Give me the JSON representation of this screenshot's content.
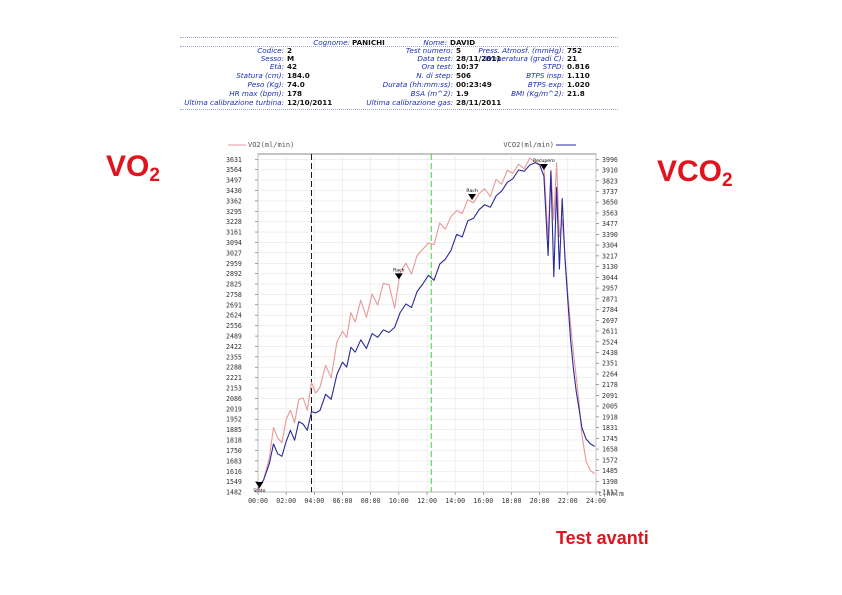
{
  "header": {
    "fields": [
      {
        "label": "Cognome:",
        "value": "PANICHI"
      },
      {
        "label": "Nome:",
        "value": "DAVID"
      },
      {
        "label": "Codice:",
        "value": "2"
      },
      {
        "label": "Sesso:",
        "value": "M"
      },
      {
        "label": "Età:",
        "value": "42"
      },
      {
        "label": "Statura (cm):",
        "value": "184.0"
      },
      {
        "label": "Peso (Kg):",
        "value": "74.0"
      },
      {
        "label": "HR max (bpm):",
        "value": "178"
      },
      {
        "label": "Ultima calibrazione turbina:",
        "value": "12/10/2011"
      },
      {
        "label": "Test numero:",
        "value": "5"
      },
      {
        "label": "Data test:",
        "value": "28/11/2011"
      },
      {
        "label": "Ora test:",
        "value": "10:37"
      },
      {
        "label": "N. di step:",
        "value": "506"
      },
      {
        "label": "Durata (hh:mm:ss):",
        "value": "00:23:49"
      },
      {
        "label": "BSA (m^2):",
        "value": "1.9"
      },
      {
        "label": "Ultima calibrazione gas:",
        "value": "28/11/2011"
      },
      {
        "label": "Press. Atmosf. (mmHg):",
        "value": "752"
      },
      {
        "label": "Temperatura (gradi C):",
        "value": "21"
      },
      {
        "label": "STPD:",
        "value": "0.816"
      },
      {
        "label": "BTPS insp:",
        "value": "1.110"
      },
      {
        "label": "BTPS exp:",
        "value": "1.020"
      },
      {
        "label": "BMI (Kg/m^2):",
        "value": "21.8"
      }
    ]
  },
  "left_title": {
    "main": "VO",
    "sub": "2"
  },
  "right_title": {
    "main": "VCO",
    "sub": "2"
  },
  "footer_label": "Test avanti",
  "colors": {
    "vo2": "#e89898",
    "vco2": "#2a2a9a",
    "accent_red": "#e0141e",
    "label_blue": "#1a2fb0",
    "green_marker": "#33cc33"
  },
  "chart_data": {
    "type": "line",
    "xlabel": "t(hh:mm:ss)",
    "x_ticks": [
      "00:00",
      "02:00",
      "04:00",
      "06:00",
      "08:00",
      "10:00",
      "12:00",
      "14:00",
      "16:00",
      "18:00",
      "20:00",
      "22:00",
      "24:00"
    ],
    "xlim": [
      0,
      24
    ],
    "y_left": {
      "label": "VO2(ml/min)",
      "ticks": [
        1482,
        1549,
        1616,
        1683,
        1750,
        1818,
        1885,
        1952,
        2019,
        2086,
        2153,
        2221,
        2288,
        2355,
        2422,
        2489,
        2556,
        2624,
        2691,
        2758,
        2825,
        2892,
        2959,
        3027,
        3094,
        3161,
        3228,
        3295,
        3362,
        3430,
        3497,
        3564,
        3631
      ],
      "lim": [
        1482,
        3665
      ]
    },
    "y_right": {
      "label": "VCO2(ml/min)",
      "ticks": [
        1312,
        1398,
        1485,
        1572,
        1658,
        1745,
        1831,
        1918,
        2005,
        2091,
        2178,
        2264,
        2351,
        2438,
        2524,
        2611,
        2697,
        2784,
        2871,
        2957,
        3044,
        3130,
        3217,
        3304,
        3390,
        3477,
        3563,
        3650,
        3737,
        3823,
        3910,
        3996
      ],
      "lim": [
        1312,
        4039
      ]
    },
    "markers": [
      {
        "label": "Stato",
        "x": 0.1
      },
      {
        "label": "Rach",
        "x": 10.0
      },
      {
        "label": "Rach",
        "x": 15.2
      },
      {
        "label": "Recupero",
        "x": 20.3
      }
    ],
    "vlines": [
      {
        "x": 3.8,
        "color": "#000000"
      },
      {
        "x": 12.3,
        "color": "#33cc33"
      }
    ],
    "series": [
      {
        "name": "VO2(ml/min)",
        "axis": "left",
        "x": [
          0.0,
          0.4,
          0.8,
          1.1,
          1.4,
          1.7,
          2.0,
          2.3,
          2.6,
          2.9,
          3.2,
          3.5,
          3.8,
          4.1,
          4.4,
          4.8,
          5.2,
          5.6,
          6.0,
          6.3,
          6.6,
          6.9,
          7.3,
          7.7,
          8.1,
          8.5,
          8.9,
          9.3,
          9.7,
          10.1,
          10.5,
          10.9,
          11.3,
          11.7,
          12.1,
          12.5,
          12.9,
          13.3,
          13.7,
          14.1,
          14.5,
          14.9,
          15.3,
          15.7,
          16.1,
          16.5,
          16.9,
          17.3,
          17.7,
          18.1,
          18.5,
          18.9,
          19.3,
          19.7,
          20.0,
          20.3,
          20.6,
          20.8,
          21.0,
          21.2,
          21.4,
          21.6,
          21.8,
          22.0,
          22.2,
          22.4,
          22.6,
          22.8,
          23.0,
          23.3,
          23.6,
          23.9
        ],
        "y": [
          1490,
          1560,
          1700,
          1900,
          1830,
          1800,
          1950,
          2010,
          1930,
          2080,
          2090,
          2010,
          2190,
          2120,
          2160,
          2300,
          2220,
          2450,
          2520,
          2480,
          2640,
          2580,
          2720,
          2610,
          2760,
          2690,
          2830,
          2820,
          2670,
          2900,
          2960,
          2890,
          3010,
          3050,
          3090,
          3080,
          3220,
          3180,
          3260,
          3300,
          3280,
          3370,
          3350,
          3410,
          3440,
          3390,
          3500,
          3470,
          3560,
          3540,
          3600,
          3570,
          3640,
          3610,
          3600,
          3580,
          3120,
          3560,
          3240,
          3610,
          3130,
          3240,
          3010,
          2760,
          2560,
          2380,
          2220,
          2060,
          1850,
          1680,
          1620,
          1600
        ]
      },
      {
        "name": "VCO2(ml/min)",
        "axis": "right",
        "x": [
          0.0,
          0.4,
          0.8,
          1.1,
          1.4,
          1.7,
          2.0,
          2.3,
          2.6,
          2.9,
          3.2,
          3.5,
          3.8,
          4.1,
          4.4,
          4.8,
          5.2,
          5.6,
          6.0,
          6.3,
          6.6,
          6.9,
          7.3,
          7.7,
          8.1,
          8.5,
          8.9,
          9.3,
          9.7,
          10.1,
          10.5,
          10.9,
          11.3,
          11.7,
          12.1,
          12.5,
          12.9,
          13.3,
          13.7,
          14.1,
          14.5,
          14.9,
          15.3,
          15.7,
          16.1,
          16.5,
          16.9,
          17.3,
          17.7,
          18.1,
          18.5,
          18.9,
          19.3,
          19.7,
          20.0,
          20.3,
          20.6,
          20.8,
          21.0,
          21.2,
          21.4,
          21.6,
          21.8,
          22.0,
          22.2,
          22.4,
          22.6,
          22.8,
          23.0,
          23.3,
          23.6,
          23.9
        ],
        "y": [
          1340,
          1410,
          1540,
          1700,
          1620,
          1600,
          1720,
          1810,
          1730,
          1880,
          1860,
          1810,
          1960,
          1950,
          1970,
          2100,
          2060,
          2260,
          2360,
          2320,
          2480,
          2440,
          2540,
          2470,
          2590,
          2560,
          2620,
          2600,
          2640,
          2760,
          2830,
          2800,
          2930,
          2990,
          3060,
          3020,
          3150,
          3190,
          3260,
          3390,
          3370,
          3500,
          3520,
          3590,
          3630,
          3610,
          3700,
          3740,
          3810,
          3840,
          3910,
          3900,
          3950,
          3970,
          3950,
          3860,
          3220,
          3900,
          3050,
          3770,
          3110,
          3680,
          3190,
          2860,
          2540,
          2300,
          2120,
          1980,
          1830,
          1740,
          1700,
          1680
        ]
      }
    ]
  }
}
